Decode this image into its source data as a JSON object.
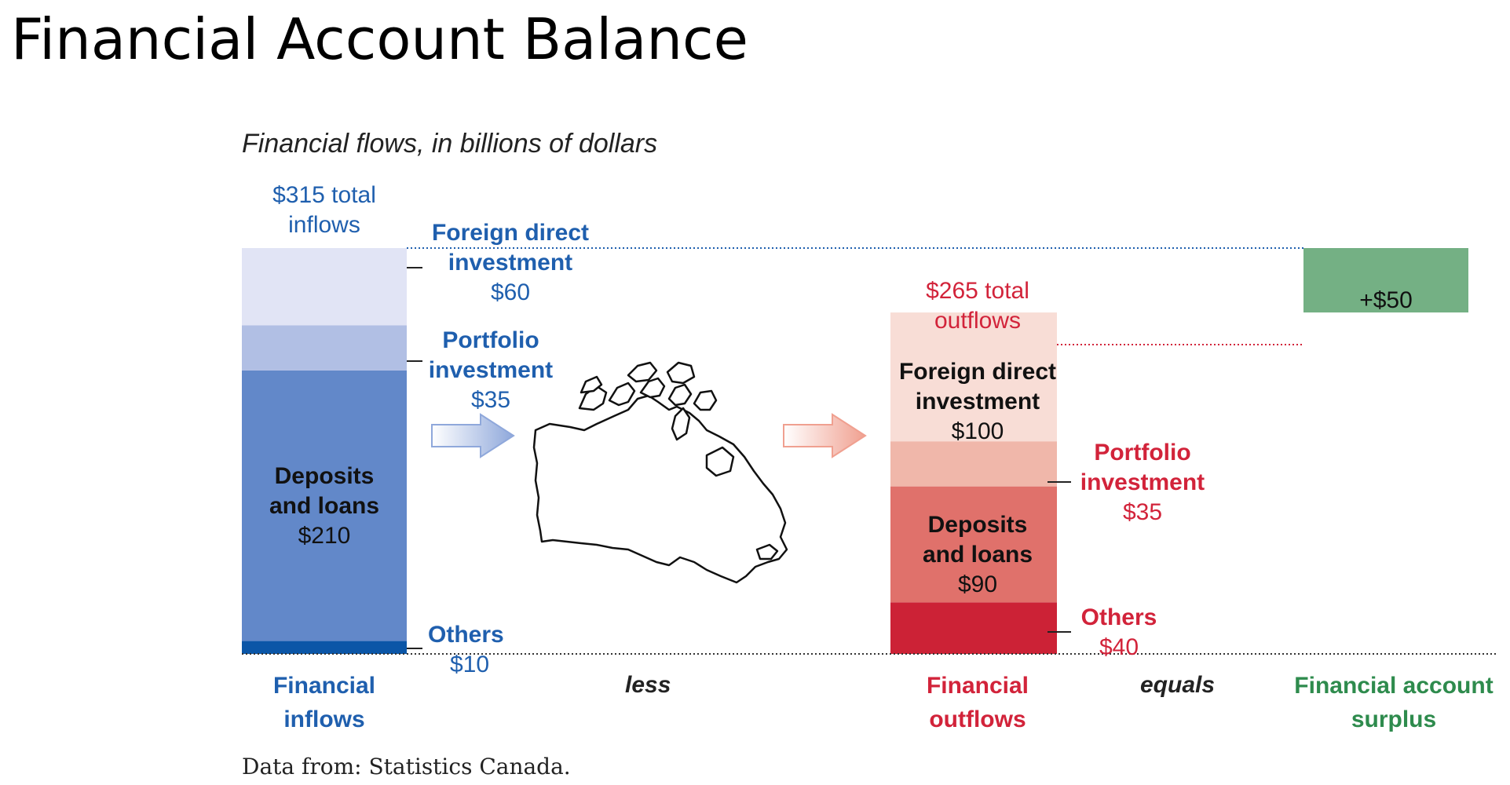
{
  "slide_title": "Financial Account Balance",
  "source": "Data from: Statistics Canada.",
  "colors": {
    "inflow_fdi": "#e1e4f5",
    "inflow_portfolio": "#b1bfe4",
    "inflow_deposits": "#6288c9",
    "inflow_others": "#0b56a7",
    "outflow_fdi": "#f8ddd6",
    "outflow_portfolio": "#f0b7aa",
    "outflow_deposits": "#e0716b",
    "outflow_others": "#cc2236",
    "surplus": "#74b084",
    "blue_text": "#1f5fae",
    "red_text": "#d2233a",
    "green_text": "#2e8b4d"
  },
  "chart_data": {
    "type": "bar",
    "title": "Financial flows, in billions of dollars",
    "categories": [
      "Financial inflows",
      "Financial outflows",
      "Financial account surplus"
    ],
    "connectors": [
      "less",
      "equals"
    ],
    "series": [
      {
        "name": "Foreign direct investment",
        "values": [
          60,
          100,
          null
        ]
      },
      {
        "name": "Portfolio investment",
        "values": [
          35,
          35,
          null
        ]
      },
      {
        "name": "Deposits and loans",
        "values": [
          210,
          90,
          null
        ]
      },
      {
        "name": "Others",
        "values": [
          10,
          40,
          null
        ]
      }
    ],
    "surplus_value": 50,
    "ylim": [
      0,
      315
    ],
    "totals": {
      "inflows_label_line1": "$315 total",
      "inflows_label_line2": "inflows",
      "outflows_label_line1": "$265 total",
      "outflows_label_line2": "outflows",
      "surplus_label": "+$50"
    },
    "inflow_labels": {
      "fdi": [
        "Foreign direct",
        "investment",
        "$60"
      ],
      "portfolio": [
        "Portfolio",
        "investment",
        "$35"
      ],
      "deposits": [
        "Deposits",
        "and loans",
        "$210"
      ],
      "others": [
        "Others",
        "$10"
      ]
    },
    "outflow_labels": {
      "fdi": [
        "Foreign direct",
        "investment",
        "$100"
      ],
      "portfolio": [
        "Portfolio",
        "investment",
        "$35"
      ],
      "deposits": [
        "Deposits",
        "and loans",
        "$90"
      ],
      "others": [
        "Others",
        "$40"
      ]
    },
    "category_labels": {
      "inflows": [
        "Financial",
        "inflows"
      ],
      "less": "less",
      "outflows": [
        "Financial",
        "outflows"
      ],
      "equals": "equals",
      "surplus": [
        "Financial account",
        "surplus"
      ]
    }
  }
}
